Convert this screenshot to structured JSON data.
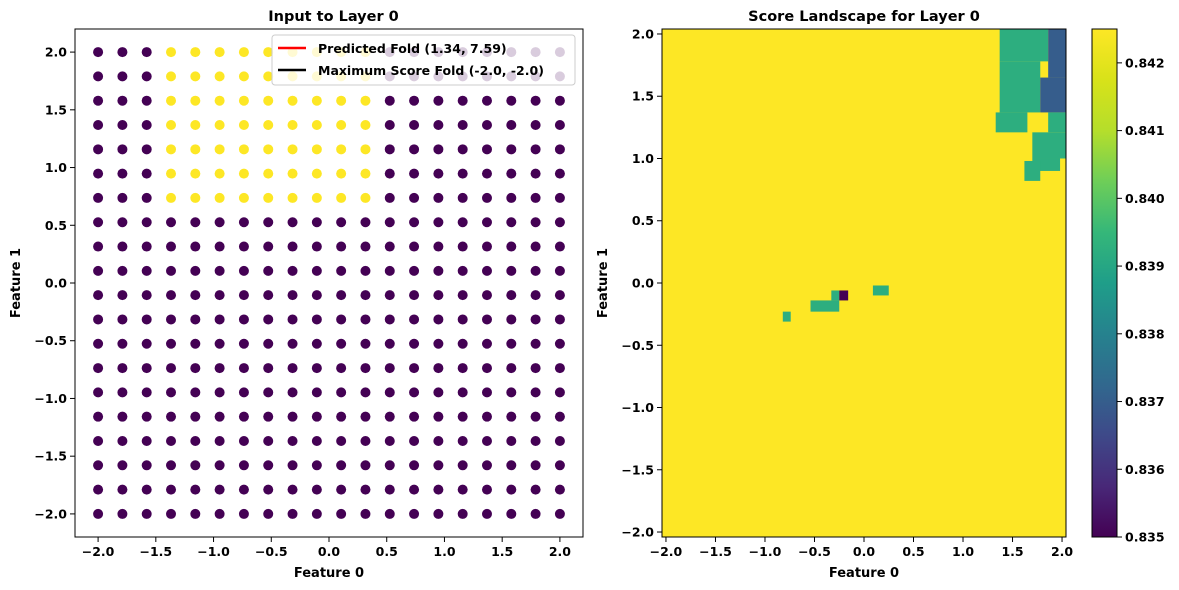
{
  "chart_data": [
    {
      "type": "scatter",
      "title": "Input to Layer 0",
      "xlabel": "Feature 0",
      "ylabel": "Feature 1",
      "xlim": [
        -2.2,
        2.2
      ],
      "ylim": [
        -2.2,
        2.2
      ],
      "xticks": [
        "-2.0",
        "-1.5",
        "-1.0",
        "-0.5",
        "0.0",
        "0.5",
        "1.0",
        "1.5",
        "2.0"
      ],
      "yticks": [
        "-2.0",
        "-1.5",
        "-1.0",
        "-0.5",
        "0.0",
        "0.5",
        "1.0",
        "1.5",
        "2.0"
      ],
      "grid": false,
      "legend_position": "top-right",
      "grid_points": {
        "x_start": -2.0,
        "x_end": 2.0,
        "x_count": 20,
        "y_start": -2.0,
        "y_end": 2.0,
        "y_count": 20,
        "default_class": 0,
        "class1_region": {
          "x_min": -1.37,
          "x_max": 0.32,
          "y_min": 0.73,
          "y_max": 2.0
        },
        "class_colors": {
          "0": "#440154",
          "1": "#fde725"
        }
      },
      "lines": [
        {
          "name": "Predicted Fold (1.34, 7.59)",
          "color": "#ff0000"
        },
        {
          "name": "Maximum Score Fold (-2.0, -2.0)",
          "color": "#000000"
        }
      ]
    },
    {
      "type": "heatmap",
      "title": "Score Landscape for Layer 0",
      "xlabel": "Feature 0",
      "ylabel": "Feature 1",
      "xlim": [
        -2.04,
        2.04
      ],
      "ylim": [
        -2.04,
        2.04
      ],
      "xticks": [
        "-2.0",
        "-1.5",
        "-1.0",
        "-0.5",
        "0.0",
        "0.5",
        "1.0",
        "1.5",
        "2.0"
      ],
      "yticks": [
        "-2.0",
        "-1.5",
        "-1.0",
        "-0.5",
        "0.0",
        "0.5",
        "1.0",
        "1.5",
        "2.0"
      ],
      "background_value": 0.8425,
      "patches": [
        {
          "x": [
            1.37,
            1.86
          ],
          "y": [
            1.78,
            2.04
          ],
          "value": 0.8397
        },
        {
          "x": [
            1.37,
            1.78
          ],
          "y": [
            1.37,
            1.78
          ],
          "value": 0.8397
        },
        {
          "x": [
            1.33,
            1.65
          ],
          "y": [
            1.21,
            1.37
          ],
          "value": 0.8397
        },
        {
          "x": [
            1.78,
            2.04
          ],
          "y": [
            1.37,
            1.65
          ],
          "value": 0.8372
        },
        {
          "x": [
            1.86,
            2.04
          ],
          "y": [
            1.65,
            2.04
          ],
          "value": 0.8372
        },
        {
          "x": [
            1.86,
            2.04
          ],
          "y": [
            1.21,
            1.37
          ],
          "value": 0.8397
        },
        {
          "x": [
            1.7,
            2.04
          ],
          "y": [
            1.0,
            1.21
          ],
          "value": 0.8397
        },
        {
          "x": [
            1.7,
            1.98
          ],
          "y": [
            0.9,
            1.0
          ],
          "value": 0.8397
        },
        {
          "x": [
            1.62,
            1.78
          ],
          "y": [
            0.82,
            0.98
          ],
          "value": 0.8397
        },
        {
          "x": [
            0.09,
            0.25
          ],
          "y": [
            -0.1,
            -0.02
          ],
          "value": 0.8397
        },
        {
          "x": [
            -0.54,
            -0.25
          ],
          "y": [
            -0.23,
            -0.14
          ],
          "value": 0.8397
        },
        {
          "x": [
            -0.33,
            -0.25
          ],
          "y": [
            -0.14,
            -0.06
          ],
          "value": 0.8397
        },
        {
          "x": [
            -0.25,
            -0.16
          ],
          "y": [
            -0.14,
            -0.06
          ],
          "value": 0.835
        },
        {
          "x": [
            -0.82,
            -0.74
          ],
          "y": [
            -0.31,
            -0.23
          ],
          "value": 0.8397
        }
      ],
      "colorbar": {
        "colormap": "viridis",
        "vmin": 0.835,
        "vmax": 0.8425,
        "ticks": [
          "0.835",
          "0.836",
          "0.837",
          "0.838",
          "0.839",
          "0.840",
          "0.841",
          "0.842"
        ]
      }
    }
  ]
}
